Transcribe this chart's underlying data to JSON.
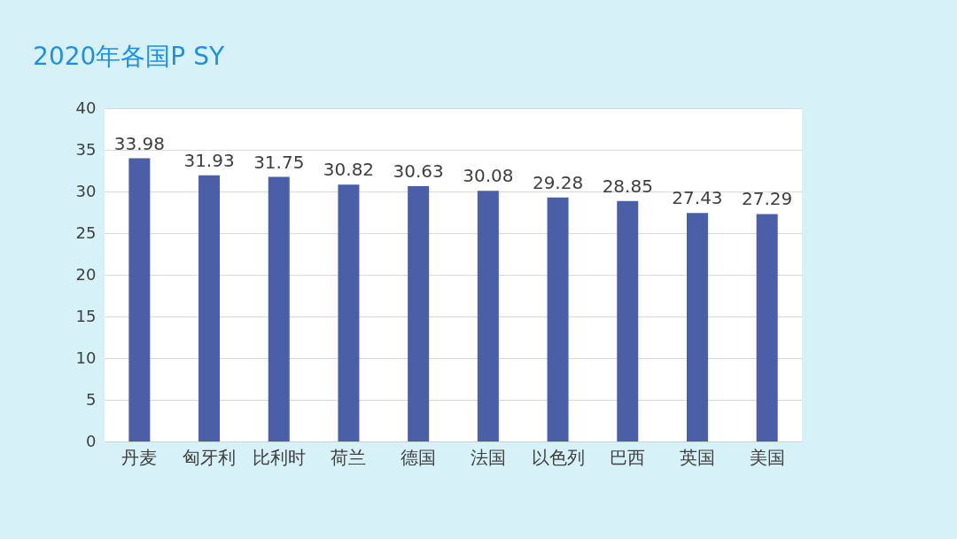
{
  "chart_data": {
    "type": "bar",
    "title": "2020年各国P SY",
    "categories": [
      "丹麦",
      "匈牙利",
      "比利时",
      "荷兰",
      "德国",
      "法国",
      "以色列",
      "巴西",
      "英国",
      "美国"
    ],
    "values": [
      33.98,
      31.93,
      31.75,
      30.82,
      30.63,
      30.08,
      29.28,
      28.85,
      27.43,
      27.29
    ],
    "color": "#4a5fa8",
    "ylim": [
      0,
      40
    ],
    "yticks": [
      0,
      5,
      10,
      15,
      20,
      25,
      30,
      35,
      40
    ],
    "grid": "y",
    "data_labels": true
  }
}
